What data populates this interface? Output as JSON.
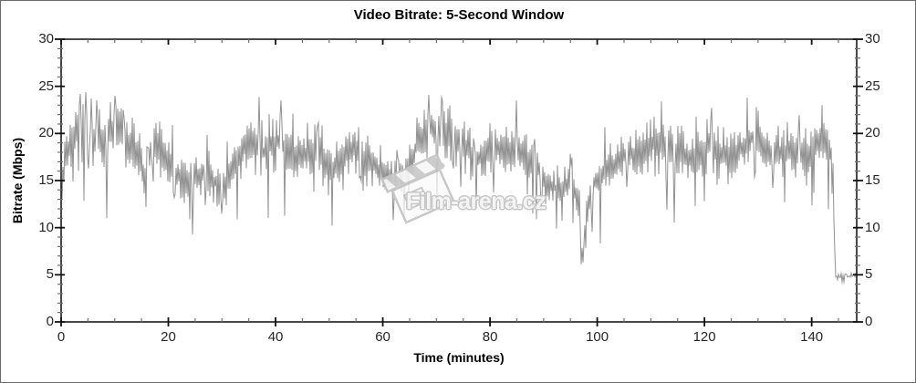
{
  "chart_data": {
    "type": "line",
    "title": "Video Bitrate: 5-Second Window",
    "xlabel": "Time (minutes)",
    "ylabel": "Bitrate (Mbps)",
    "xlim": [
      0,
      148.4
    ],
    "ylim": [
      0,
      30
    ],
    "x_major_ticks": [
      0,
      20,
      40,
      60,
      80,
      100,
      120,
      140
    ],
    "x_minor_step": 5,
    "y_major_ticks": [
      0,
      5,
      10,
      15,
      20,
      25,
      30
    ],
    "y_minor_step": 1,
    "right_axis_labels": [
      0,
      5,
      10,
      15,
      20,
      25,
      30
    ],
    "grid": false,
    "legend": "none",
    "series": [
      {
        "name": "Video bitrate (5-second window)",
        "unit": "Mbps",
        "color": "#919191",
        "profile_t": [
          0,
          0.8,
          2,
          4,
          6,
          8,
          10,
          12,
          14,
          15.5,
          17,
          19,
          21,
          23,
          25,
          27,
          29,
          30.5,
          32,
          34,
          36,
          38,
          40,
          42,
          44,
          46,
          48,
          50,
          51.5,
          53,
          55,
          57,
          59,
          61,
          63,
          65,
          67,
          69,
          71,
          73,
          75,
          77,
          79,
          81,
          83,
          85,
          87,
          89,
          91,
          93,
          95,
          96.5,
          97.3,
          98,
          99.5,
          101,
          103,
          105,
          107,
          109,
          111,
          113,
          115,
          117,
          119,
          121,
          123,
          125,
          127,
          129,
          131,
          133,
          135,
          137,
          139,
          141,
          142.5,
          143.6,
          144.0,
          144.4,
          146,
          147.5,
          148.4
        ],
        "profile_avg": [
          14,
          17.5,
          19.5,
          20.5,
          19,
          20,
          20.5,
          19,
          18,
          15,
          18.5,
          18,
          16,
          15,
          15.5,
          16,
          14.5,
          14,
          16.5,
          18.5,
          19,
          18,
          19.5,
          18.5,
          17.5,
          18,
          18.5,
          15.5,
          17,
          18,
          18.5,
          17,
          16.5,
          15,
          15.5,
          17,
          19.5,
          21,
          20,
          19.5,
          19,
          17,
          17.5,
          18.5,
          18,
          18.5,
          17,
          16,
          14.5,
          14,
          15,
          13,
          7,
          12,
          14.5,
          15.5,
          16.5,
          17.5,
          18,
          18.5,
          19,
          18.5,
          18,
          17.5,
          18,
          18.5,
          18,
          17.5,
          18.5,
          19.5,
          18.5,
          17.5,
          18,
          18.5,
          18,
          19,
          19.5,
          18,
          16,
          4.8,
          4.8,
          4.9,
          5.1
        ],
        "noise_amp_mbps": 3.3,
        "tail": {
          "start_t": 144.35,
          "avg": 4.8,
          "amp": 0.35
        },
        "spikes": [
          {
            "t": 3.5,
            "v": 24.2
          },
          {
            "t": 8.5,
            "v": 11.0
          },
          {
            "t": 10,
            "v": 24.0
          },
          {
            "t": 15.8,
            "v": 12.2
          },
          {
            "t": 24,
            "v": 10.9
          },
          {
            "t": 30,
            "v": 11.5
          },
          {
            "t": 41,
            "v": 23.5
          },
          {
            "t": 50.5,
            "v": 10.2
          },
          {
            "t": 62,
            "v": 10.8
          },
          {
            "t": 64,
            "v": 11.0
          },
          {
            "t": 68.5,
            "v": 24.1
          },
          {
            "t": 71,
            "v": 23.8
          },
          {
            "t": 77.5,
            "v": 12.0
          },
          {
            "t": 85,
            "v": 23.5
          },
          {
            "t": 88,
            "v": 11.5
          },
          {
            "t": 92.4,
            "v": 9.9
          },
          {
            "t": 95.5,
            "v": 10.5
          },
          {
            "t": 97.3,
            "v": 6.3
          },
          {
            "t": 112,
            "v": 23.4
          },
          {
            "t": 120,
            "v": 12.8
          },
          {
            "t": 128,
            "v": 23.8
          },
          {
            "t": 135,
            "v": 12.7
          },
          {
            "t": 142,
            "v": 23.0
          }
        ]
      }
    ]
  },
  "watermark": {
    "text": "Film-arena.cz",
    "icon": "clapperboard-icon",
    "outline_color": "#c3c3c3"
  },
  "colors": {
    "axis": "#1a1a1a",
    "major_tick": "#111111",
    "minor_tick": "#6f6f6f",
    "tick_label": "#262626",
    "line": "#919191"
  }
}
